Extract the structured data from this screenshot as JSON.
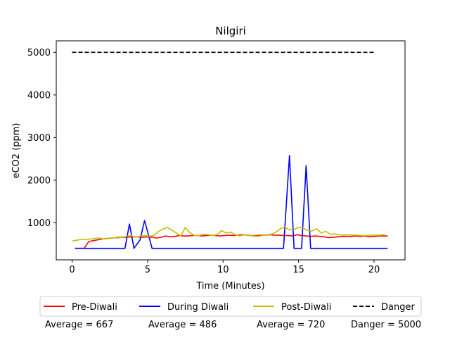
{
  "chart_data": {
    "type": "line",
    "title": "Nilgiri",
    "xlabel": "Time (Minutes)",
    "ylabel": "eCO2 (ppm)",
    "xlim": [
      -1.05,
      22.05
    ],
    "ylim": [
      130,
      5270
    ],
    "xticks": [
      0,
      5,
      10,
      15,
      20
    ],
    "yticks": [
      1000,
      2000,
      3000,
      4000,
      5000
    ],
    "grid": false,
    "legend_position": "bottom",
    "series": [
      {
        "name": "Pre-Diwali",
        "color": "#ff0000",
        "style": "solid",
        "x": [
          0.2,
          0.5,
          0.8,
          1.1,
          1.4,
          1.7,
          2.0,
          2.3,
          2.6,
          2.9,
          3.2,
          3.5,
          3.8,
          4.1,
          4.4,
          4.7,
          5.0,
          5.3,
          5.6,
          5.9,
          6.2,
          6.5,
          6.8,
          7.1,
          7.4,
          7.7,
          8.0,
          8.3,
          8.6,
          8.9,
          9.2,
          9.5,
          9.8,
          10.1,
          10.4,
          10.7,
          11.0,
          11.3,
          11.6,
          11.9,
          12.2,
          12.5,
          12.8,
          13.1,
          13.4,
          13.7,
          14.0,
          14.3,
          14.6,
          14.9,
          15.2,
          15.5,
          15.8,
          16.1,
          16.4,
          16.7,
          17.0,
          17.3,
          17.6,
          17.9,
          18.2,
          18.5,
          18.8,
          19.1,
          19.4,
          19.7,
          20.0,
          20.3,
          20.6,
          20.9
        ],
        "values": [
          400,
          400,
          400,
          560,
          580,
          600,
          620,
          630,
          640,
          650,
          660,
          660,
          665,
          670,
          665,
          660,
          670,
          660,
          640,
          660,
          690,
          670,
          680,
          700,
          690,
          690,
          700,
          700,
          690,
          700,
          710,
          700,
          690,
          700,
          710,
          700,
          710,
          720,
          710,
          700,
          700,
          710,
          710,
          720,
          710,
          710,
          700,
          700,
          690,
          720,
          700,
          690,
          680,
          690,
          680,
          670,
          650,
          660,
          670,
          680,
          680,
          680,
          690,
          680,
          690,
          670,
          680,
          690,
          690,
          690
        ]
      },
      {
        "name": "During Diwali",
        "color": "#0000ff",
        "style": "solid",
        "x": [
          0.2,
          3.5,
          3.8,
          4.1,
          4.5,
          4.8,
          5.3,
          14.0,
          14.4,
          14.7,
          15.2,
          15.5,
          15.8,
          20.9
        ],
        "values": [
          400,
          400,
          970,
          400,
          600,
          1050,
          400,
          400,
          2580,
          400,
          400,
          2340,
          400,
          400
        ]
      },
      {
        "name": "Post-Diwali",
        "color": "#bfbf00",
        "style": "solid",
        "x": [
          0.0,
          0.3,
          0.6,
          0.9,
          1.2,
          1.5,
          1.8,
          2.1,
          2.4,
          2.7,
          3.0,
          3.3,
          3.6,
          3.9,
          4.2,
          4.5,
          4.8,
          5.1,
          5.4,
          5.7,
          6.0,
          6.3,
          6.6,
          6.9,
          7.2,
          7.5,
          7.8,
          8.1,
          8.4,
          8.7,
          9.0,
          9.3,
          9.6,
          9.9,
          10.2,
          10.5,
          10.8,
          11.1,
          11.4,
          11.7,
          12.0,
          12.3,
          12.6,
          12.9,
          13.2,
          13.5,
          13.8,
          14.1,
          14.4,
          14.7,
          15.0,
          15.3,
          15.6,
          15.9,
          16.2,
          16.5,
          16.8,
          17.1,
          17.4,
          17.7,
          18.0,
          18.3,
          18.6,
          18.9,
          19.2,
          19.5,
          19.8,
          20.1,
          20.4,
          20.7
        ],
        "values": [
          570,
          590,
          610,
          610,
          620,
          630,
          640,
          620,
          630,
          650,
          640,
          660,
          680,
          700,
          660,
          680,
          700,
          680,
          700,
          790,
          850,
          890,
          830,
          760,
          690,
          890,
          770,
          700,
          700,
          730,
          720,
          700,
          720,
          820,
          760,
          780,
          720,
          690,
          720,
          700,
          690,
          680,
          700,
          720,
          730,
          780,
          860,
          900,
          830,
          840,
          890,
          880,
          820,
          810,
          860,
          760,
          800,
          730,
          740,
          720,
          710,
          720,
          710,
          710,
          700,
          700,
          710,
          710,
          710,
          720
        ]
      },
      {
        "name": "Danger",
        "color": "#000000",
        "style": "dashed",
        "x": [
          0.0,
          20.0
        ],
        "values": [
          5000,
          5000
        ]
      }
    ]
  },
  "averages": {
    "pre": "Average = 667",
    "during": "Average = 486",
    "post": "Average = 720",
    "danger": "Danger = 5000"
  }
}
